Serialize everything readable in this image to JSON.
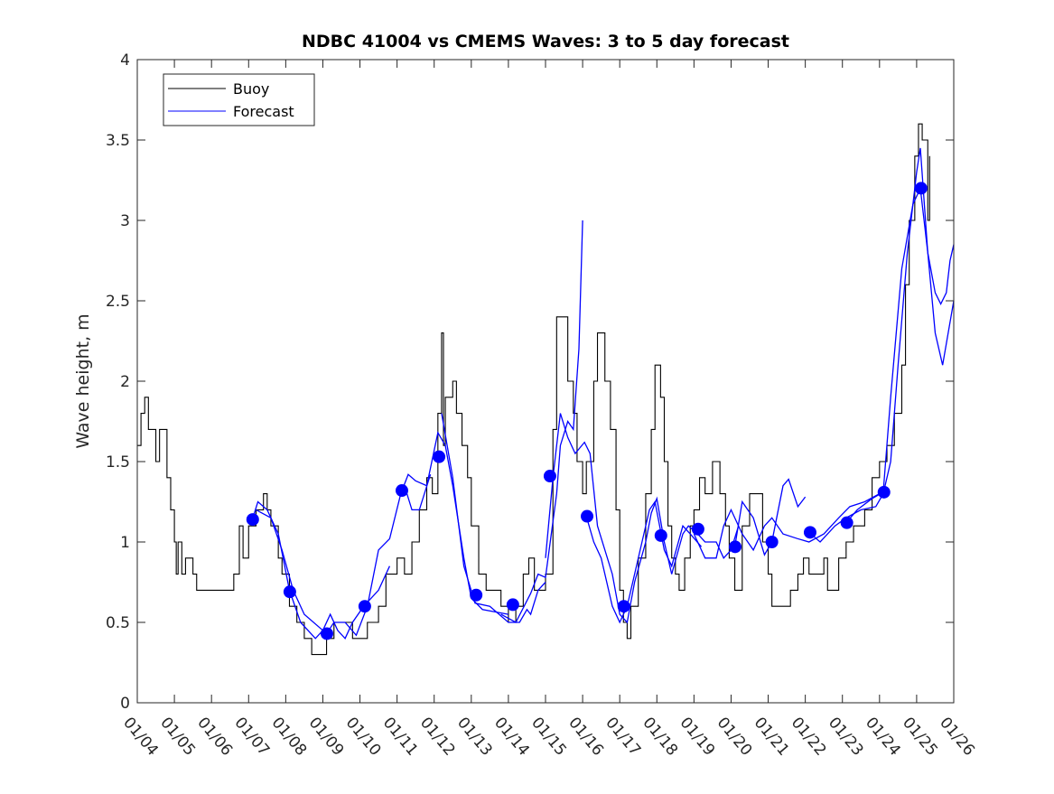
{
  "chart_data": {
    "type": "line",
    "title": "NDBC 41004 vs CMEMS Waves: 3 to 5 day forecast",
    "xlabel": "",
    "ylabel": "Wave height, m",
    "xlim_days": [
      0,
      22
    ],
    "ylim": [
      0,
      4
    ],
    "x_tick_labels": [
      "01/04",
      "01/05",
      "01/06",
      "01/07",
      "01/08",
      "01/09",
      "01/10",
      "01/11",
      "01/12",
      "01/13",
      "01/14",
      "01/15",
      "01/16",
      "01/17",
      "01/18",
      "01/19",
      "01/20",
      "01/21",
      "01/22",
      "01/23",
      "01/24",
      "01/25",
      "01/26"
    ],
    "y_ticks": [
      0,
      0.5,
      1,
      1.5,
      2,
      2.5,
      3,
      3.5,
      4
    ],
    "y_tick_labels": [
      "0",
      "0.5",
      "1",
      "1.5",
      "2",
      "2.5",
      "3",
      "3.5",
      "4"
    ],
    "grid": false,
    "legend": {
      "placement": "top-left",
      "entries": [
        {
          "label": "Buoy",
          "color": "#000000"
        },
        {
          "label": "Forecast",
          "color": "#0000ff"
        }
      ]
    },
    "x_unit_note": "days since 01/04",
    "buoy": [
      [
        0,
        1.6
      ],
      [
        0.1,
        1.8
      ],
      [
        0.2,
        1.9
      ],
      [
        0.3,
        1.7
      ],
      [
        0.5,
        1.5
      ],
      [
        0.6,
        1.7
      ],
      [
        0.8,
        1.4
      ],
      [
        0.9,
        1.2
      ],
      [
        1.0,
        1.0
      ],
      [
        1.05,
        0.8
      ],
      [
        1.1,
        1.0
      ],
      [
        1.2,
        0.8
      ],
      [
        1.3,
        0.9
      ],
      [
        1.5,
        0.8
      ],
      [
        1.6,
        0.7
      ],
      [
        2.0,
        0.7
      ],
      [
        2.5,
        0.7
      ],
      [
        2.6,
        0.8
      ],
      [
        2.75,
        1.1
      ],
      [
        2.85,
        0.9
      ],
      [
        3.0,
        1.1
      ],
      [
        3.2,
        1.2
      ],
      [
        3.4,
        1.3
      ],
      [
        3.5,
        1.2
      ],
      [
        3.6,
        1.1
      ],
      [
        3.8,
        0.9
      ],
      [
        3.9,
        0.8
      ],
      [
        4.1,
        0.6
      ],
      [
        4.3,
        0.5
      ],
      [
        4.5,
        0.4
      ],
      [
        4.7,
        0.3
      ],
      [
        4.9,
        0.3
      ],
      [
        5.1,
        0.4
      ],
      [
        5.3,
        0.5
      ],
      [
        5.5,
        0.5
      ],
      [
        5.8,
        0.4
      ],
      [
        6.2,
        0.5
      ],
      [
        6.5,
        0.6
      ],
      [
        6.7,
        0.8
      ],
      [
        6.9,
        0.8
      ],
      [
        7.0,
        0.9
      ],
      [
        7.2,
        0.8
      ],
      [
        7.4,
        1.0
      ],
      [
        7.6,
        1.2
      ],
      [
        7.8,
        1.4
      ],
      [
        7.95,
        1.3
      ],
      [
        8.1,
        1.8
      ],
      [
        8.2,
        2.3
      ],
      [
        8.25,
        1.6
      ],
      [
        8.3,
        1.9
      ],
      [
        8.5,
        2.0
      ],
      [
        8.6,
        1.8
      ],
      [
        8.75,
        1.6
      ],
      [
        8.9,
        1.4
      ],
      [
        9.0,
        1.1
      ],
      [
        9.2,
        0.8
      ],
      [
        9.4,
        0.7
      ],
      [
        9.6,
        0.7
      ],
      [
        9.8,
        0.6
      ],
      [
        10.0,
        0.5
      ],
      [
        10.2,
        0.6
      ],
      [
        10.4,
        0.8
      ],
      [
        10.55,
        0.9
      ],
      [
        10.7,
        0.7
      ],
      [
        10.9,
        0.7
      ],
      [
        11.0,
        0.8
      ],
      [
        11.2,
        1.7
      ],
      [
        11.3,
        2.4
      ],
      [
        11.45,
        2.4
      ],
      [
        11.6,
        2.0
      ],
      [
        11.75,
        1.8
      ],
      [
        11.85,
        1.5
      ],
      [
        12.0,
        1.3
      ],
      [
        12.1,
        1.5
      ],
      [
        12.3,
        2.0
      ],
      [
        12.4,
        2.3
      ],
      [
        12.5,
        2.3
      ],
      [
        12.6,
        2.0
      ],
      [
        12.75,
        1.7
      ],
      [
        12.9,
        1.2
      ],
      [
        13.0,
        0.7
      ],
      [
        13.1,
        0.5
      ],
      [
        13.2,
        0.4
      ],
      [
        13.3,
        0.6
      ],
      [
        13.5,
        0.9
      ],
      [
        13.7,
        1.3
      ],
      [
        13.85,
        1.7
      ],
      [
        13.95,
        2.1
      ],
      [
        14.1,
        1.9
      ],
      [
        14.2,
        1.5
      ],
      [
        14.3,
        1.1
      ],
      [
        14.4,
        0.9
      ],
      [
        14.5,
        0.8
      ],
      [
        14.6,
        0.7
      ],
      [
        14.75,
        0.9
      ],
      [
        14.9,
        1.1
      ],
      [
        15.0,
        1.2
      ],
      [
        15.15,
        1.4
      ],
      [
        15.3,
        1.3
      ],
      [
        15.5,
        1.5
      ],
      [
        15.7,
        1.3
      ],
      [
        15.85,
        1.1
      ],
      [
        15.95,
        0.9
      ],
      [
        16.1,
        0.7
      ],
      [
        16.3,
        1.1
      ],
      [
        16.5,
        1.3
      ],
      [
        16.7,
        1.3
      ],
      [
        16.85,
        1.0
      ],
      [
        17.0,
        0.8
      ],
      [
        17.1,
        0.6
      ],
      [
        17.4,
        0.6
      ],
      [
        17.6,
        0.7
      ],
      [
        17.8,
        0.8
      ],
      [
        17.95,
        0.9
      ],
      [
        18.1,
        0.8
      ],
      [
        18.3,
        0.8
      ],
      [
        18.5,
        0.9
      ],
      [
        18.6,
        0.7
      ],
      [
        18.9,
        0.9
      ],
      [
        19.1,
        1.0
      ],
      [
        19.3,
        1.1
      ],
      [
        19.6,
        1.2
      ],
      [
        19.8,
        1.4
      ],
      [
        20.0,
        1.5
      ],
      [
        20.2,
        1.6
      ],
      [
        20.4,
        1.8
      ],
      [
        20.6,
        2.1
      ],
      [
        20.7,
        2.6
      ],
      [
        20.8,
        3.0
      ],
      [
        20.95,
        3.4
      ],
      [
        21.05,
        3.6
      ],
      [
        21.15,
        3.5
      ],
      [
        21.3,
        3.0
      ],
      [
        21.35,
        3.4
      ]
    ],
    "forecast_segments": [
      [
        [
          3.1,
          1.14
        ],
        [
          3.25,
          1.25
        ],
        [
          3.5,
          1.2
        ],
        [
          3.8,
          1.05
        ],
        [
          4.1,
          0.7
        ],
        [
          4.4,
          0.5
        ],
        [
          4.8,
          0.4
        ],
        [
          5.0,
          0.45
        ],
        [
          5.2,
          0.55
        ],
        [
          5.4,
          0.45
        ],
        [
          5.6,
          0.4
        ],
        [
          5.8,
          0.5
        ],
        [
          6.1,
          0.6
        ],
        [
          6.5,
          0.7
        ],
        [
          6.8,
          0.85
        ]
      ],
      [
        [
          3.2,
          1.2
        ],
        [
          3.6,
          1.15
        ],
        [
          3.9,
          0.95
        ],
        [
          4.2,
          0.7
        ],
        [
          4.5,
          0.55
        ],
        [
          5.1,
          0.43
        ],
        [
          5.3,
          0.5
        ],
        [
          5.6,
          0.5
        ],
        [
          5.9,
          0.42
        ],
        [
          6.2,
          0.6
        ],
        [
          6.5,
          0.95
        ],
        [
          6.8,
          1.02
        ],
        [
          7.1,
          1.3
        ],
        [
          7.3,
          1.42
        ],
        [
          7.5,
          1.38
        ],
        [
          7.8,
          1.35
        ],
        [
          8.1,
          1.68
        ],
        [
          8.3,
          1.6
        ],
        [
          8.5,
          1.35
        ],
        [
          8.8,
          0.9
        ],
        [
          9.0,
          0.65
        ],
        [
          9.3,
          0.58
        ],
        [
          10.0,
          0.55
        ]
      ],
      [
        [
          7.2,
          1.35
        ],
        [
          7.4,
          1.2
        ],
        [
          7.6,
          1.2
        ],
        [
          7.9,
          1.42
        ]
      ],
      [
        [
          8.2,
          1.8
        ],
        [
          8.5,
          1.4
        ],
        [
          8.8,
          0.85
        ],
        [
          9.1,
          0.62
        ],
        [
          9.5,
          0.6
        ],
        [
          10.0,
          0.5
        ],
        [
          10.3,
          0.5
        ],
        [
          10.5,
          0.58
        ],
        [
          10.6,
          0.55
        ],
        [
          10.8,
          0.7
        ],
        [
          11.0,
          0.75
        ]
      ],
      [
        [
          9.8,
          0.55
        ],
        [
          10.2,
          0.5
        ],
        [
          10.6,
          0.68
        ],
        [
          10.8,
          0.8
        ],
        [
          11.0,
          0.78
        ],
        [
          11.3,
          1.3
        ],
        [
          11.4,
          1.6
        ],
        [
          11.6,
          1.75
        ],
        [
          11.75,
          1.7
        ],
        [
          11.9,
          2.2
        ],
        [
          12.0,
          3.0
        ]
      ],
      [
        [
          11.0,
          0.9
        ],
        [
          11.2,
          1.4
        ],
        [
          11.4,
          1.8
        ],
        [
          11.6,
          1.65
        ],
        [
          11.8,
          1.55
        ],
        [
          12.05,
          1.62
        ],
        [
          12.2,
          1.55
        ],
        [
          12.4,
          1.1
        ],
        [
          12.8,
          0.8
        ],
        [
          13.0,
          0.55
        ],
        [
          13.2,
          0.5
        ],
        [
          13.4,
          0.75
        ],
        [
          13.7,
          1.0
        ],
        [
          13.85,
          1.18
        ],
        [
          14.0,
          1.27
        ],
        [
          14.2,
          1.0
        ],
        [
          14.4,
          0.8
        ],
        [
          14.7,
          1.05
        ],
        [
          14.85,
          1.1
        ],
        [
          15.1,
          1.05
        ],
        [
          15.3,
          1.0
        ],
        [
          15.6,
          1.0
        ],
        [
          15.8,
          0.9
        ],
        [
          16.0,
          0.95
        ],
        [
          16.2,
          1.1
        ]
      ],
      [
        [
          12.1,
          1.16
        ],
        [
          12.3,
          1.0
        ],
        [
          12.5,
          0.9
        ],
        [
          12.8,
          0.6
        ],
        [
          13.0,
          0.5
        ],
        [
          13.2,
          0.6
        ],
        [
          13.4,
          0.8
        ],
        [
          13.6,
          1.0
        ],
        [
          13.8,
          1.2
        ],
        [
          13.95,
          1.25
        ],
        [
          14.2,
          0.95
        ],
        [
          14.4,
          0.85
        ],
        [
          14.7,
          1.1
        ],
        [
          14.9,
          1.05
        ],
        [
          15.2,
          0.97
        ]
      ],
      [
        [
          15.0,
          1.05
        ],
        [
          15.3,
          0.9
        ],
        [
          15.6,
          0.9
        ],
        [
          15.8,
          1.1
        ],
        [
          16.0,
          1.2
        ],
        [
          16.3,
          1.05
        ],
        [
          16.6,
          0.95
        ],
        [
          16.9,
          1.1
        ],
        [
          17.1,
          1.15
        ],
        [
          17.4,
          1.05
        ],
        [
          17.8,
          1.02
        ],
        [
          18.1,
          1.0
        ],
        [
          18.5,
          1.05
        ],
        [
          18.9,
          1.15
        ],
        [
          19.2,
          1.22
        ],
        [
          19.6,
          1.25
        ],
        [
          20.0,
          1.3
        ]
      ],
      [
        [
          16.1,
          0.97
        ],
        [
          16.3,
          1.25
        ],
        [
          16.6,
          1.15
        ],
        [
          16.9,
          0.92
        ],
        [
          17.1,
          1.0
        ],
        [
          17.4,
          1.35
        ],
        [
          17.55,
          1.39
        ],
        [
          17.8,
          1.22
        ],
        [
          18.0,
          1.28
        ]
      ],
      [
        [
          18.1,
          1.06
        ],
        [
          18.4,
          1.0
        ],
        [
          18.8,
          1.1
        ],
        [
          19.1,
          1.15
        ],
        [
          19.5,
          1.2
        ],
        [
          19.9,
          1.22
        ],
        [
          20.1,
          1.3
        ],
        [
          20.3,
          1.5
        ],
        [
          20.5,
          2.1
        ],
        [
          20.75,
          2.8
        ],
        [
          21.0,
          3.3
        ],
        [
          21.1,
          3.45
        ],
        [
          21.3,
          2.8
        ],
        [
          21.5,
          2.3
        ],
        [
          21.7,
          2.1
        ],
        [
          22.0,
          2.5
        ]
      ],
      [
        [
          19.1,
          1.12
        ],
        [
          19.4,
          1.2
        ],
        [
          19.8,
          1.27
        ],
        [
          20.1,
          1.31
        ],
        [
          20.3,
          1.9
        ],
        [
          20.6,
          2.7
        ],
        [
          20.9,
          3.1
        ],
        [
          21.1,
          3.2
        ],
        [
          21.3,
          2.8
        ],
        [
          21.5,
          2.55
        ],
        [
          21.65,
          2.48
        ],
        [
          21.8,
          2.55
        ],
        [
          21.9,
          2.75
        ],
        [
          22.0,
          2.85
        ]
      ]
    ],
    "forecast_markers": [
      [
        3.11,
        1.14
      ],
      [
        4.11,
        0.69
      ],
      [
        5.11,
        0.43
      ],
      [
        6.13,
        0.6
      ],
      [
        7.13,
        1.32
      ],
      [
        8.13,
        1.53
      ],
      [
        9.13,
        0.67
      ],
      [
        10.12,
        0.61
      ],
      [
        11.12,
        1.41
      ],
      [
        12.12,
        1.16
      ],
      [
        13.11,
        0.6
      ],
      [
        14.11,
        1.04
      ],
      [
        15.11,
        1.08
      ],
      [
        16.11,
        0.97
      ],
      [
        17.1,
        1.0
      ],
      [
        18.13,
        1.06
      ],
      [
        19.12,
        1.12
      ],
      [
        20.12,
        1.31
      ],
      [
        21.12,
        3.2
      ]
    ],
    "colors": {
      "buoy": "#000000",
      "forecast": "#0000ff",
      "axis": "#262626"
    }
  }
}
